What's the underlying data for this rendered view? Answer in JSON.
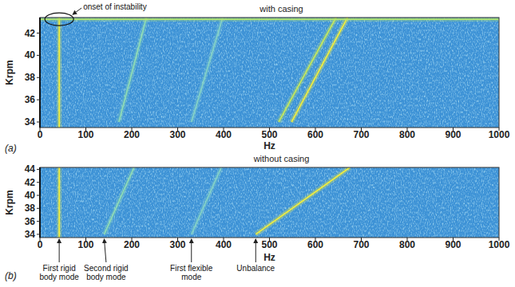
{
  "chart_data": [
    {
      "type": "spectrogram",
      "title": "with casing",
      "panel_label": "(a)",
      "x_label": "Hz",
      "y_label": "Krpm",
      "xlim": [
        0,
        1000
      ],
      "xticks": [
        0,
        100,
        200,
        300,
        400,
        500,
        600,
        700,
        800,
        900,
        1000
      ],
      "ylim": [
        33.5,
        43.4
      ],
      "yticks": [
        34,
        36,
        38,
        40,
        42
      ],
      "series": [
        {
          "color": "#f2ee3a",
          "x": [
            42,
            42
          ],
          "values": [
            33.5,
            43.4
          ]
        },
        {
          "color": "#8fdcb4",
          "x": [
            172,
            232
          ],
          "values": [
            34,
            43.4
          ]
        },
        {
          "color": "#84d2c6",
          "x": [
            330,
            398
          ],
          "values": [
            34,
            43.4
          ]
        },
        {
          "color": "#c4e85a",
          "x": [
            520,
            645
          ],
          "values": [
            34,
            43.4
          ]
        },
        {
          "color": "#f2ee3a",
          "x": [
            548,
            670
          ],
          "values": [
            34,
            43.4
          ]
        },
        {
          "color": "#b2e46c",
          "x": [
            0,
            1000
          ],
          "values": [
            43.25,
            43.25
          ]
        }
      ],
      "annotations": [
        {
          "text": "onset of instability",
          "x": 42,
          "y": 43.25
        }
      ]
    },
    {
      "type": "spectrogram",
      "title": "without casing",
      "panel_label": "(b)",
      "x_label": "Hz",
      "y_label": "Krpm",
      "xlim": [
        0,
        1000
      ],
      "xticks": [
        0,
        100,
        200,
        300,
        400,
        500,
        600,
        700,
        800,
        900,
        1000
      ],
      "ylim": [
        33.5,
        44.3
      ],
      "yticks": [
        34,
        36,
        38,
        40,
        42,
        44
      ],
      "series": [
        {
          "color": "#f2ee3a",
          "x": [
            42,
            42
          ],
          "values": [
            33.5,
            44.3
          ]
        },
        {
          "color": "#8fdcb4",
          "x": [
            140,
            205
          ],
          "values": [
            34,
            44.3
          ]
        },
        {
          "color": "#84d2c6",
          "x": [
            330,
            395
          ],
          "values": [
            34,
            44.3
          ]
        },
        {
          "color": "#f2ee3a",
          "x": [
            470,
            675
          ],
          "values": [
            34,
            44.3
          ]
        }
      ],
      "annotations": [
        {
          "text": "First rigid body mode",
          "x": 42
        },
        {
          "text": "Second rigid body mode",
          "x": 140
        },
        {
          "text": "First flexible mode",
          "x": 330
        },
        {
          "text": "Unbalance",
          "x": 470
        }
      ]
    }
  ]
}
